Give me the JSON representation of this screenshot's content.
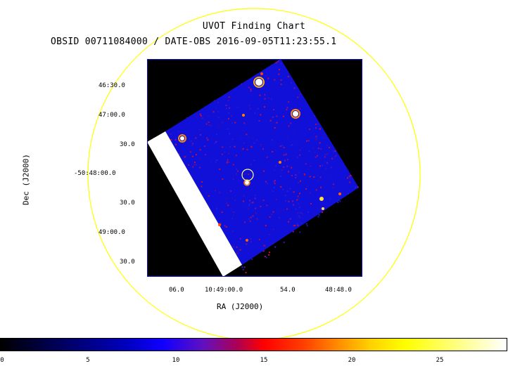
{
  "title": "UVOT Finding Chart",
  "subtitle": "OBSID 00711084000 / DATE-OBS 2016-09-05T11:23:55.1",
  "axes": {
    "xlabel": "RA (J2000)",
    "ylabel": "Dec (J2000)",
    "y_ticks": [
      "46:30.0",
      "47:00.0",
      "30.0",
      "-50:48:00.0",
      "30.0",
      "49:00.0",
      "30.0"
    ],
    "x_ticks": [
      "06.0",
      "10:49:00.0",
      "54.0",
      "48:48.0"
    ]
  },
  "colorbar": {
    "ticks": [
      "0",
      "5",
      "10",
      "15",
      "20",
      "25"
    ],
    "range": [
      0,
      29
    ]
  },
  "colors": {
    "circle": "#ffff00",
    "frame": "#0000ff",
    "image_bg": "#000000"
  }
}
